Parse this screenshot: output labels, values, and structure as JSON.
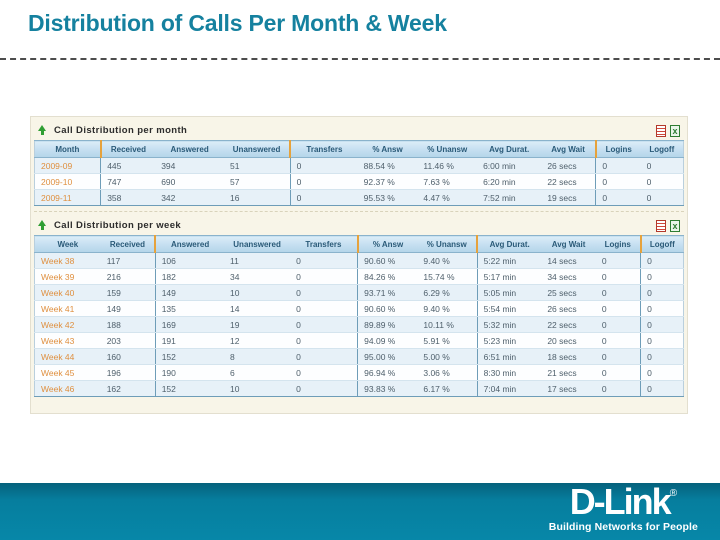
{
  "page": {
    "title": "Distribution of Calls Per Month & Week"
  },
  "colors": {
    "title_teal": "#15819f",
    "footer_teal": "#0787a8",
    "header_blue": "#b4d5e9",
    "row_stripe": "#e7f1f8",
    "label_orange": "#df8f3e",
    "separator_orange": "#e6a23c",
    "arrow_green": "#2f9e33"
  },
  "icons": {
    "section_marker": "up-arrow-icon",
    "exports": [
      "pdf-export-icon",
      "excel-export-icon"
    ]
  },
  "month_table": {
    "section_title": "Call Distribution per month",
    "columns": [
      "Month",
      "Received",
      "Answered",
      "Unanswered",
      "Transfers",
      "% Answ",
      "% Unansw",
      "Avg Durat.",
      "Avg Wait",
      "Logins",
      "Logoff"
    ],
    "rows": [
      [
        "2009-09",
        "445",
        "394",
        "51",
        "0",
        "88.54 %",
        "11.46 %",
        "6:00 min",
        "26 secs",
        "0",
        "0"
      ],
      [
        "2009-10",
        "747",
        "690",
        "57",
        "0",
        "92.37 %",
        "7.63 %",
        "6:20 min",
        "22 secs",
        "0",
        "0"
      ],
      [
        "2009-11",
        "358",
        "342",
        "16",
        "0",
        "95.53 %",
        "4.47 %",
        "7:52 min",
        "19 secs",
        "0",
        "0"
      ]
    ]
  },
  "week_table": {
    "section_title": "Call Distribution per week",
    "columns": [
      "Week",
      "Received",
      "Answered",
      "Unanswered",
      "Transfers",
      "% Answ",
      "% Unansw",
      "Avg Durat.",
      "Avg Wait",
      "Logins",
      "Logoff"
    ],
    "rows": [
      [
        "Week 38",
        "117",
        "106",
        "11",
        "0",
        "90.60 %",
        "9.40 %",
        "5:22 min",
        "14 secs",
        "0",
        "0"
      ],
      [
        "Week 39",
        "216",
        "182",
        "34",
        "0",
        "84.26 %",
        "15.74 %",
        "5:17 min",
        "34 secs",
        "0",
        "0"
      ],
      [
        "Week 40",
        "159",
        "149",
        "10",
        "0",
        "93.71 %",
        "6.29 %",
        "5:05 min",
        "25 secs",
        "0",
        "0"
      ],
      [
        "Week 41",
        "149",
        "135",
        "14",
        "0",
        "90.60 %",
        "9.40 %",
        "5:54 min",
        "26 secs",
        "0",
        "0"
      ],
      [
        "Week 42",
        "188",
        "169",
        "19",
        "0",
        "89.89 %",
        "10.11 %",
        "5:32 min",
        "22 secs",
        "0",
        "0"
      ],
      [
        "Week 43",
        "203",
        "191",
        "12",
        "0",
        "94.09 %",
        "5.91 %",
        "5:23 min",
        "20 secs",
        "0",
        "0"
      ],
      [
        "Week 44",
        "160",
        "152",
        "8",
        "0",
        "95.00 %",
        "5.00 %",
        "6:51 min",
        "18 secs",
        "0",
        "0"
      ],
      [
        "Week 45",
        "196",
        "190",
        "6",
        "0",
        "96.94 %",
        "3.06 %",
        "8:30 min",
        "21 secs",
        "0",
        "0"
      ],
      [
        "Week 46",
        "162",
        "152",
        "10",
        "0",
        "93.83 %",
        "6.17 %",
        "7:04 min",
        "17 secs",
        "0",
        "0"
      ]
    ]
  },
  "footer": {
    "logo_text": "D-Link",
    "logo_reg": "®",
    "tagline": "Building Networks for People"
  }
}
